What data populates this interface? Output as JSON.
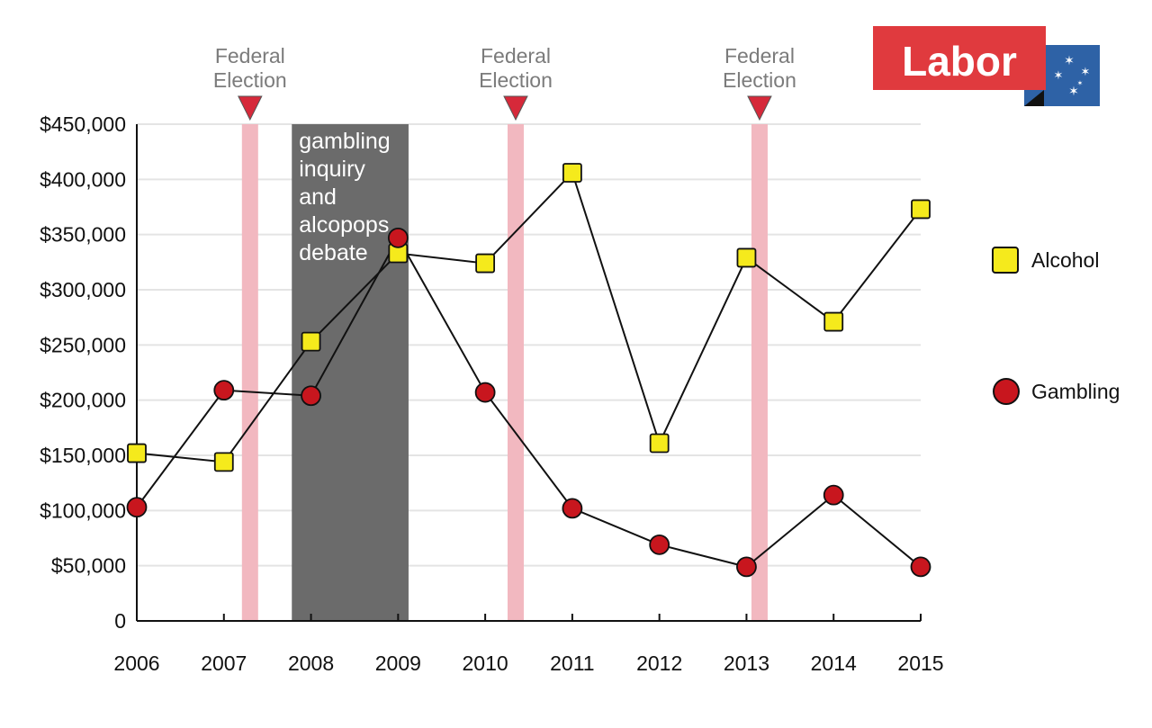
{
  "chart_data": {
    "type": "line",
    "title": "",
    "xlabel": "",
    "ylabel": "",
    "categories": [
      "2006",
      "2007",
      "2008",
      "2009",
      "2010",
      "2011",
      "2012",
      "2013",
      "2014",
      "2015"
    ],
    "ylim": [
      0,
      450000
    ],
    "yticks": [
      0,
      50000,
      100000,
      150000,
      200000,
      250000,
      300000,
      350000,
      400000,
      450000
    ],
    "ytick_labels": [
      "0",
      "$50,000",
      "$100,000",
      "$150,000",
      "$200,000",
      "$250,000",
      "$300,000",
      "$350,000",
      "$400,000",
      "$450,000"
    ],
    "grid": true,
    "series": [
      {
        "name": "Alcohol",
        "marker": "square",
        "color": "#f5ea1c",
        "points": [
          {
            "x": 2006,
            "y": 152000
          },
          {
            "x": 2007,
            "y": 144000
          },
          {
            "x": 2008,
            "y": 253000
          },
          {
            "x": 2009,
            "y": 333000
          },
          {
            "x": 2010,
            "y": 324000
          },
          {
            "x": 2011,
            "y": 406000
          },
          {
            "x": 2012,
            "y": 161000
          },
          {
            "x": 2013,
            "y": 329000
          },
          {
            "x": 2014,
            "y": 271000
          },
          {
            "x": 2015,
            "y": 373000
          }
        ]
      },
      {
        "name": "Gambling",
        "marker": "circle",
        "color": "#c8161e",
        "points": [
          {
            "x": 2006,
            "y": 103000
          },
          {
            "x": 2007,
            "y": 209000
          },
          {
            "x": 2008,
            "y": 204000
          },
          {
            "x": 2009,
            "y": 347000
          },
          {
            "x": 2010,
            "y": 207000
          },
          {
            "x": 2011,
            "y": 102000
          },
          {
            "x": 2012,
            "y": 69000
          },
          {
            "x": 2013,
            "y": 49000
          },
          {
            "x": 2014,
            "y": 114000
          },
          {
            "x": 2015,
            "y": 49000
          }
        ]
      }
    ],
    "elections": [
      {
        "x": 2007.3,
        "line1": "Federal",
        "line2": "Election"
      },
      {
        "x": 2010.35,
        "line1": "Federal",
        "line2": "Election"
      },
      {
        "x": 2013.15,
        "line1": "Federal",
        "line2": "Election"
      }
    ],
    "shaded_period": {
      "x_start": 2007.78,
      "x_end": 2009.12,
      "label_lines": [
        "gambling",
        "inquiry",
        "and",
        "alcopops",
        "debate"
      ]
    },
    "legend_position": "right"
  },
  "logo": {
    "text": "Labor",
    "brand_red": "#e03a3e",
    "flag_blue": "#2e62a6"
  },
  "colors": {
    "election_band": "#f2b8c0",
    "election_marker": "#d6293a",
    "shade": "#6b6b6b",
    "line": "#111111",
    "grid": "#e4e4e4"
  }
}
